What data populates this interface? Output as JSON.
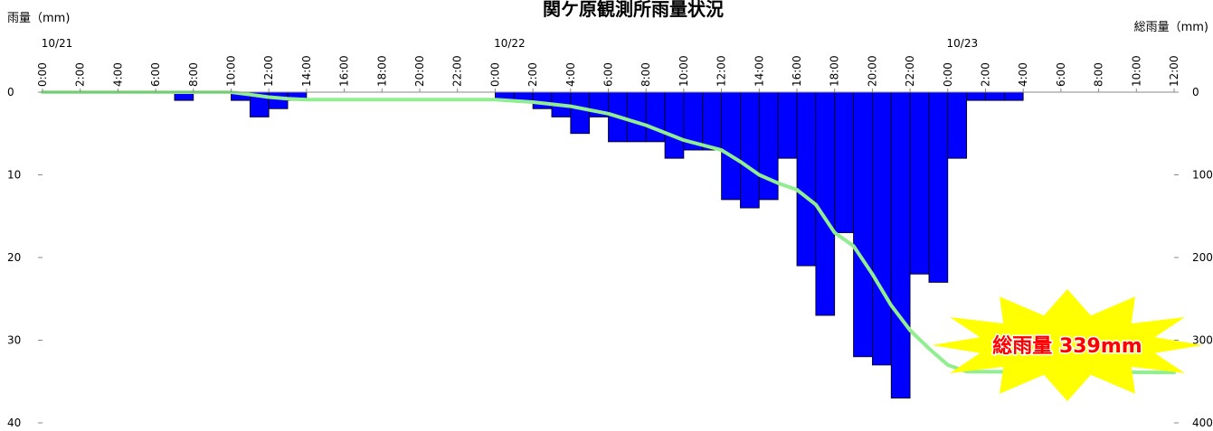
{
  "chart_data": {
    "type": "bar",
    "title": "関ケ原観測所雨量状況",
    "left_axis_label": "雨量（mm)",
    "right_axis_label": "総雨量（mm)",
    "left_ylim": [
      0,
      40
    ],
    "left_ticks": [
      "0",
      "10",
      "20",
      "30",
      "40"
    ],
    "right_ylim": [
      0,
      400
    ],
    "right_ticks": [
      "0",
      "100",
      "200",
      "300",
      "400"
    ],
    "y_inverted": true,
    "x_start": "10/21 0:00",
    "x_end": "10/23 12:00",
    "x_tick_labels": [
      "0:00",
      "2:00",
      "4:00",
      "6:00",
      "8:00",
      "10:00",
      "12:00",
      "14:00",
      "16:00",
      "18:00",
      "20:00",
      "22:00",
      "0:00",
      "2:00",
      "4:00",
      "6:00",
      "8:00",
      "10:00",
      "12:00",
      "14:00",
      "16:00",
      "18:00",
      "20:00",
      "22:00",
      "0:00",
      "2:00",
      "4:00",
      "6:00",
      "8:00",
      "10:00",
      "12:00"
    ],
    "date_labels": [
      {
        "text": "10/21",
        "hour": 0
      },
      {
        "text": "10/22",
        "hour": 24
      },
      {
        "text": "10/23",
        "hour": 48
      }
    ],
    "hourly_rainfall": {
      "name": "雨量",
      "color": "#0000ff",
      "x_hours": [
        7,
        10,
        11,
        12,
        13,
        24,
        25,
        26,
        27,
        28,
        29,
        30,
        31,
        32,
        33,
        34,
        35,
        36,
        37,
        38,
        39,
        40,
        41,
        42,
        43,
        44,
        45,
        46,
        47,
        48,
        49,
        50,
        51
      ],
      "values": [
        1,
        1,
        3,
        2,
        1,
        1,
        1,
        2,
        3,
        5,
        3,
        6,
        6,
        6,
        8,
        7,
        7,
        13,
        14,
        13,
        8,
        21,
        27,
        17,
        32,
        33,
        37,
        22,
        23,
        8,
        1,
        1,
        1
      ]
    },
    "cumulative_rainfall": {
      "name": "総雨量",
      "color": "#90ee90",
      "x_hours": [
        0,
        10,
        11,
        12,
        13,
        14,
        24,
        26,
        28,
        30,
        32,
        34,
        36,
        37,
        38,
        39,
        40,
        41,
        42,
        43,
        44,
        45,
        46,
        47,
        48,
        49,
        60
      ],
      "values": [
        0,
        0,
        3,
        6,
        8,
        9,
        9,
        12,
        17,
        26,
        40,
        58,
        70,
        84,
        100,
        110,
        118,
        136,
        170,
        186,
        220,
        258,
        288,
        310,
        330,
        338,
        339
      ]
    },
    "callout": {
      "text": "総雨量 339mm",
      "color": "#ff0000",
      "burst_color": "#ffff00"
    }
  }
}
